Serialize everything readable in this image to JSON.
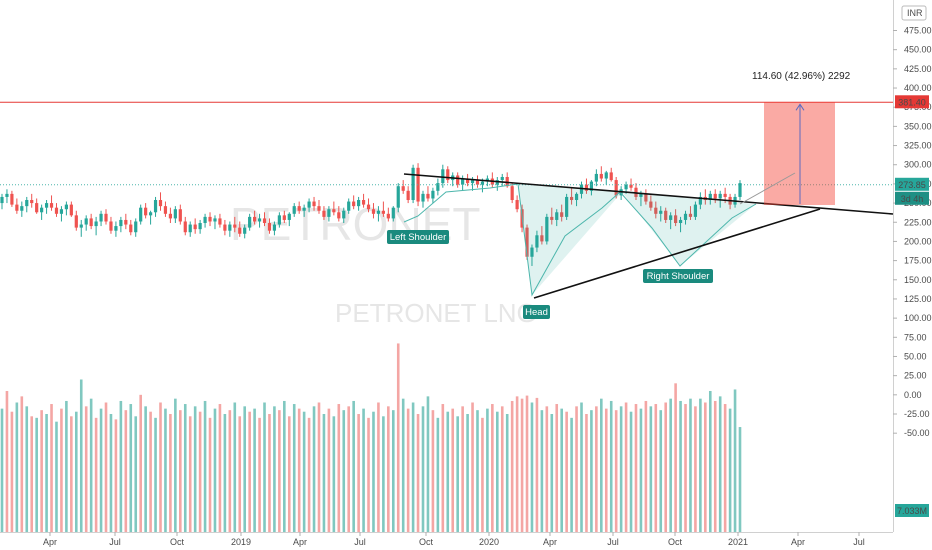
{
  "chart_data": {
    "type": "candlestick",
    "watermark": {
      "big": "PETRONET",
      "sub": "PETRONET LNG"
    },
    "currency": "INR",
    "yticks": [
      "475.00",
      "450.00",
      "425.00",
      "400.00",
      "375.00",
      "350.00",
      "325.00",
      "300.00",
      "275.00",
      "250.00",
      "225.00",
      "200.00",
      "175.00",
      "150.00",
      "125.00",
      "100.00",
      "75.00",
      "50.00",
      "25.00",
      "0.00",
      "-25.00",
      "-50.00"
    ],
    "xtick_labels": [
      "Apr",
      "Jul",
      "Oct",
      "2019",
      "Apr",
      "Jul",
      "Oct",
      "2020",
      "Apr",
      "Jul",
      "Oct",
      "2021",
      "Apr",
      "Jul"
    ],
    "price_labels": {
      "resistance": "381.40",
      "last_price": "273.85",
      "countdown": "3d 4h",
      "volume": "7.033M"
    },
    "measure_text": "114.60 (42.96%) 2292",
    "annotations": [
      "Left Shoulder",
      "Head",
      "Right Shoulder"
    ],
    "levels": {
      "resistance": 381.4,
      "last_price": 273.85
    },
    "candles": [
      [
        250,
        262,
        242,
        258
      ],
      [
        258,
        268,
        250,
        262
      ],
      [
        262,
        266,
        245,
        248
      ],
      [
        248,
        256,
        236,
        240
      ],
      [
        240,
        252,
        232,
        246
      ],
      [
        246,
        258,
        238,
        254
      ],
      [
        254,
        262,
        244,
        250
      ],
      [
        250,
        256,
        236,
        238
      ],
      [
        238,
        248,
        228,
        244
      ],
      [
        244,
        254,
        236,
        250
      ],
      [
        250,
        260,
        240,
        244
      ],
      [
        244,
        250,
        232,
        236
      ],
      [
        236,
        246,
        226,
        242
      ],
      [
        242,
        252,
        234,
        248
      ],
      [
        248,
        252,
        232,
        234
      ],
      [
        234,
        240,
        214,
        218
      ],
      [
        218,
        228,
        206,
        222
      ],
      [
        222,
        234,
        214,
        230
      ],
      [
        230,
        236,
        216,
        220
      ],
      [
        220,
        232,
        208,
        226
      ],
      [
        226,
        240,
        220,
        236
      ],
      [
        236,
        242,
        222,
        226
      ],
      [
        226,
        232,
        210,
        214
      ],
      [
        214,
        226,
        206,
        220
      ],
      [
        220,
        232,
        212,
        228
      ],
      [
        228,
        236,
        216,
        222
      ],
      [
        222,
        228,
        208,
        212
      ],
      [
        212,
        230,
        206,
        226
      ],
      [
        226,
        248,
        222,
        244
      ],
      [
        244,
        250,
        230,
        234
      ],
      [
        234,
        240,
        222,
        238
      ],
      [
        238,
        258,
        232,
        254
      ],
      [
        254,
        264,
        240,
        246
      ],
      [
        246,
        252,
        232,
        236
      ],
      [
        236,
        244,
        224,
        230
      ],
      [
        230,
        246,
        224,
        242
      ],
      [
        242,
        248,
        222,
        226
      ],
      [
        226,
        232,
        208,
        212
      ],
      [
        212,
        226,
        206,
        222
      ],
      [
        222,
        230,
        210,
        216
      ],
      [
        216,
        228,
        210,
        224
      ],
      [
        224,
        236,
        218,
        232
      ],
      [
        232,
        238,
        220,
        226
      ],
      [
        226,
        234,
        216,
        230
      ],
      [
        230,
        236,
        218,
        222
      ],
      [
        222,
        228,
        208,
        214
      ],
      [
        214,
        226,
        206,
        222
      ],
      [
        222,
        232,
        212,
        218
      ],
      [
        218,
        226,
        206,
        210
      ],
      [
        210,
        222,
        204,
        218
      ],
      [
        218,
        236,
        214,
        232
      ],
      [
        232,
        240,
        222,
        226
      ],
      [
        226,
        236,
        218,
        230
      ],
      [
        230,
        238,
        220,
        224
      ],
      [
        224,
        230,
        210,
        214
      ],
      [
        214,
        226,
        208,
        222
      ],
      [
        222,
        238,
        218,
        234
      ],
      [
        234,
        240,
        224,
        228
      ],
      [
        228,
        238,
        220,
        236
      ],
      [
        236,
        250,
        232,
        246
      ],
      [
        246,
        252,
        236,
        240
      ],
      [
        240,
        248,
        232,
        244
      ],
      [
        244,
        256,
        238,
        252
      ],
      [
        252,
        258,
        240,
        246
      ],
      [
        246,
        254,
        236,
        240
      ],
      [
        240,
        246,
        228,
        232
      ],
      [
        232,
        246,
        226,
        242
      ],
      [
        242,
        252,
        234,
        238
      ],
      [
        238,
        246,
        226,
        230
      ],
      [
        230,
        244,
        224,
        240
      ],
      [
        240,
        256,
        236,
        252
      ],
      [
        252,
        260,
        242,
        246
      ],
      [
        246,
        258,
        240,
        254
      ],
      [
        254,
        262,
        244,
        248
      ],
      [
        248,
        256,
        238,
        242
      ],
      [
        242,
        250,
        230,
        236
      ],
      [
        236,
        246,
        226,
        240
      ],
      [
        240,
        252,
        232,
        236
      ],
      [
        236,
        244,
        226,
        230
      ],
      [
        230,
        246,
        226,
        244
      ],
      [
        244,
        276,
        238,
        272
      ],
      [
        272,
        280,
        262,
        266
      ],
      [
        266,
        272,
        250,
        254
      ],
      [
        254,
        300,
        250,
        296
      ],
      [
        296,
        302,
        246,
        252
      ],
      [
        252,
        266,
        244,
        262
      ],
      [
        262,
        272,
        252,
        256
      ],
      [
        256,
        270,
        250,
        266
      ],
      [
        266,
        282,
        260,
        276
      ],
      [
        276,
        300,
        270,
        294
      ],
      [
        294,
        298,
        276,
        280
      ],
      [
        280,
        290,
        272,
        286
      ],
      [
        286,
        290,
        270,
        274
      ],
      [
        274,
        286,
        266,
        282
      ],
      [
        282,
        288,
        272,
        276
      ],
      [
        276,
        284,
        266,
        280
      ],
      [
        280,
        286,
        270,
        274
      ],
      [
        274,
        282,
        264,
        278
      ],
      [
        278,
        286,
        272,
        282
      ],
      [
        282,
        290,
        270,
        274
      ],
      [
        274,
        284,
        266,
        280
      ],
      [
        280,
        288,
        272,
        284
      ],
      [
        284,
        290,
        270,
        272
      ],
      [
        272,
        276,
        250,
        254
      ],
      [
        254,
        260,
        238,
        242
      ],
      [
        242,
        248,
        212,
        218
      ],
      [
        218,
        222,
        176,
        180
      ],
      [
        180,
        196,
        168,
        192
      ],
      [
        192,
        214,
        186,
        208
      ],
      [
        208,
        220,
        196,
        200
      ],
      [
        200,
        236,
        196,
        232
      ],
      [
        232,
        244,
        222,
        228
      ],
      [
        228,
        242,
        220,
        238
      ],
      [
        238,
        248,
        226,
        232
      ],
      [
        232,
        262,
        228,
        258
      ],
      [
        258,
        270,
        248,
        254
      ],
      [
        254,
        264,
        246,
        262
      ],
      [
        262,
        278,
        256,
        274
      ],
      [
        274,
        282,
        262,
        266
      ],
      [
        266,
        280,
        260,
        278
      ],
      [
        278,
        294,
        272,
        288
      ],
      [
        288,
        298,
        278,
        282
      ],
      [
        282,
        292,
        274,
        290
      ],
      [
        290,
        296,
        278,
        280
      ],
      [
        280,
        284,
        256,
        260
      ],
      [
        260,
        272,
        254,
        268
      ],
      [
        268,
        278,
        262,
        274
      ],
      [
        274,
        282,
        266,
        270
      ],
      [
        270,
        276,
        254,
        258
      ],
      [
        258,
        266,
        246,
        262
      ],
      [
        262,
        268,
        248,
        252
      ],
      [
        252,
        260,
        240,
        244
      ],
      [
        244,
        252,
        230,
        236
      ],
      [
        236,
        246,
        226,
        240
      ],
      [
        240,
        244,
        224,
        228
      ],
      [
        228,
        238,
        216,
        234
      ],
      [
        234,
        242,
        220,
        224
      ],
      [
        224,
        232,
        212,
        228
      ],
      [
        228,
        240,
        222,
        236
      ],
      [
        236,
        246,
        228,
        232
      ],
      [
        232,
        252,
        228,
        248
      ],
      [
        248,
        264,
        242,
        258
      ],
      [
        258,
        268,
        248,
        254
      ],
      [
        254,
        266,
        248,
        262
      ],
      [
        262,
        268,
        250,
        256
      ],
      [
        256,
        266,
        244,
        262
      ],
      [
        262,
        270,
        250,
        258
      ],
      [
        258,
        262,
        242,
        248
      ],
      [
        248,
        262,
        244,
        258
      ],
      [
        258,
        280,
        254,
        276
      ]
    ],
    "volume": [
      [
        -18,
        1
      ],
      [
        5,
        0
      ],
      [
        -22,
        0
      ],
      [
        -10,
        1
      ],
      [
        -2,
        0
      ],
      [
        -15,
        1
      ],
      [
        -28,
        0
      ],
      [
        -30,
        1
      ],
      [
        -20,
        0
      ],
      [
        -25,
        1
      ],
      [
        -12,
        0
      ],
      [
        -35,
        1
      ],
      [
        -18,
        0
      ],
      [
        -8,
        1
      ],
      [
        -28,
        0
      ],
      [
        -22,
        1
      ],
      [
        20,
        1
      ],
      [
        -15,
        0
      ],
      [
        -5,
        1
      ],
      [
        -30,
        0
      ],
      [
        -18,
        1
      ],
      [
        -10,
        0
      ],
      [
        -25,
        1
      ],
      [
        -32,
        0
      ],
      [
        -8,
        1
      ],
      [
        -20,
        0
      ],
      [
        -12,
        1
      ],
      [
        -28,
        1
      ],
      [
        0,
        0
      ],
      [
        -15,
        1
      ],
      [
        -22,
        0
      ],
      [
        -30,
        1
      ],
      [
        -10,
        0
      ],
      [
        -18,
        1
      ],
      [
        -25,
        0
      ],
      [
        -5,
        1
      ],
      [
        -20,
        0
      ],
      [
        -12,
        1
      ],
      [
        -28,
        0
      ],
      [
        -15,
        1
      ],
      [
        -22,
        0
      ],
      [
        -8,
        1
      ],
      [
        -30,
        0
      ],
      [
        -18,
        1
      ],
      [
        -12,
        0
      ],
      [
        -25,
        1
      ],
      [
        -20,
        0
      ],
      [
        -10,
        1
      ],
      [
        -28,
        0
      ],
      [
        -15,
        1
      ],
      [
        -22,
        0
      ],
      [
        -18,
        1
      ],
      [
        -30,
        0
      ],
      [
        -10,
        1
      ],
      [
        -25,
        0
      ],
      [
        -15,
        1
      ],
      [
        -20,
        0
      ],
      [
        -8,
        1
      ],
      [
        -28,
        0
      ],
      [
        -12,
        1
      ],
      [
        -18,
        0
      ],
      [
        -22,
        1
      ],
      [
        -30,
        0
      ],
      [
        -15,
        1
      ],
      [
        -10,
        0
      ],
      [
        -25,
        1
      ],
      [
        -18,
        0
      ],
      [
        -28,
        1
      ],
      [
        -12,
        0
      ],
      [
        -20,
        1
      ],
      [
        -15,
        0
      ],
      [
        -8,
        1
      ],
      [
        -25,
        0
      ],
      [
        -18,
        1
      ],
      [
        -30,
        0
      ],
      [
        -22,
        1
      ],
      [
        -10,
        0
      ],
      [
        -28,
        1
      ],
      [
        -15,
        0
      ],
      [
        -20,
        1
      ],
      [
        67,
        0
      ],
      [
        -5,
        1
      ],
      [
        -18,
        0
      ],
      [
        -10,
        1
      ],
      [
        -25,
        0
      ],
      [
        -15,
        1
      ],
      [
        -2,
        1
      ],
      [
        -20,
        0
      ],
      [
        -30,
        1
      ],
      [
        -12,
        0
      ],
      [
        -22,
        1
      ],
      [
        -18,
        0
      ],
      [
        -28,
        1
      ],
      [
        -15,
        0
      ],
      [
        -25,
        1
      ],
      [
        -10,
        0
      ],
      [
        -20,
        1
      ],
      [
        -30,
        0
      ],
      [
        -18,
        1
      ],
      [
        -12,
        0
      ],
      [
        -22,
        1
      ],
      [
        -15,
        0
      ],
      [
        -25,
        1
      ],
      [
        -8,
        0
      ],
      [
        -2,
        0
      ],
      [
        -5,
        0
      ],
      [
        -1,
        0
      ],
      [
        -10,
        1
      ],
      [
        -4,
        0
      ],
      [
        -20,
        1
      ],
      [
        -15,
        0
      ],
      [
        -25,
        1
      ],
      [
        -12,
        0
      ],
      [
        -18,
        1
      ],
      [
        -22,
        0
      ],
      [
        -30,
        1
      ],
      [
        -15,
        0
      ],
      [
        -10,
        1
      ],
      [
        -25,
        0
      ],
      [
        -20,
        1
      ],
      [
        -15,
        0
      ],
      [
        -5,
        1
      ],
      [
        -18,
        0
      ],
      [
        -8,
        1
      ],
      [
        -20,
        0
      ],
      [
        -15,
        1
      ],
      [
        -10,
        0
      ],
      [
        -22,
        1
      ],
      [
        -12,
        0
      ],
      [
        -18,
        1
      ],
      [
        -8,
        0
      ],
      [
        -15,
        1
      ],
      [
        -12,
        0
      ],
      [
        -20,
        1
      ],
      [
        -10,
        0
      ],
      [
        -5,
        1
      ],
      [
        15,
        0
      ],
      [
        -8,
        1
      ],
      [
        -12,
        0
      ],
      [
        -5,
        1
      ],
      [
        -15,
        0
      ],
      [
        -5,
        1
      ],
      [
        -10,
        0
      ],
      [
        5,
        1
      ],
      [
        -8,
        0
      ],
      [
        -2,
        1
      ],
      [
        -12,
        0
      ],
      [
        -18,
        1
      ],
      [
        7,
        1
      ],
      [
        -42,
        1
      ]
    ]
  }
}
